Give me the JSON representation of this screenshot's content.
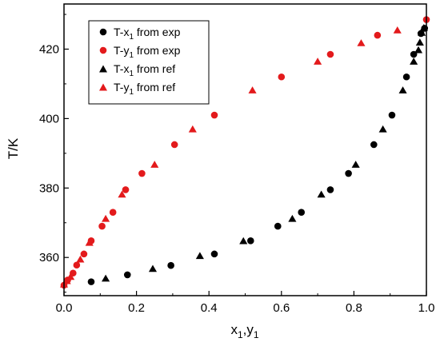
{
  "chart_data": {
    "type": "scatter",
    "xlabel_main": "x",
    "xlabel_sub1": "1",
    "xlabel_sep": ",y",
    "xlabel_sub2": "1",
    "ylabel": "T/K",
    "xlim": [
      0.0,
      1.0
    ],
    "ylim": [
      349,
      433
    ],
    "xticks": [
      "0.0",
      "0.2",
      "0.4",
      "0.6",
      "0.8",
      "1.0"
    ],
    "yticks": [
      "360",
      "380",
      "400",
      "420"
    ],
    "grid": false,
    "legend_position": "top-left",
    "series": [
      {
        "legend_main": "T-x",
        "legend_sub": "1",
        "legend_tail": " from exp",
        "color": "#000000",
        "marker": "circle",
        "points": [
          [
            0.075,
            353.0
          ],
          [
            0.175,
            355.0
          ],
          [
            0.295,
            357.7
          ],
          [
            0.415,
            361.0
          ],
          [
            0.515,
            364.8
          ],
          [
            0.59,
            369.0
          ],
          [
            0.655,
            373.0
          ],
          [
            0.735,
            379.5
          ],
          [
            0.785,
            384.2
          ],
          [
            0.855,
            392.5
          ],
          [
            0.905,
            401.0
          ],
          [
            0.945,
            412.0
          ],
          [
            0.965,
            418.5
          ],
          [
            0.985,
            424.5
          ],
          [
            0.995,
            426.0
          ]
        ]
      },
      {
        "legend_main": "T-y",
        "legend_sub": "1",
        "legend_tail": " from exp",
        "color": "#e31a1c",
        "marker": "circle",
        "points": [
          [
            0.0,
            352.0
          ],
          [
            0.01,
            353.5
          ],
          [
            0.025,
            355.5
          ],
          [
            0.035,
            357.8
          ],
          [
            0.055,
            361.0
          ],
          [
            0.075,
            364.8
          ],
          [
            0.105,
            369.0
          ],
          [
            0.135,
            373.0
          ],
          [
            0.17,
            379.5
          ],
          [
            0.215,
            384.2
          ],
          [
            0.305,
            392.5
          ],
          [
            0.415,
            401.0
          ],
          [
            0.6,
            412.0
          ],
          [
            0.735,
            418.5
          ],
          [
            0.865,
            424.0
          ],
          [
            1.0,
            428.5
          ]
        ]
      },
      {
        "legend_main": "T-x",
        "legend_sub": "1",
        "legend_tail": " from ref",
        "color": "#000000",
        "marker": "triangle",
        "points": [
          [
            0.115,
            354.0
          ],
          [
            0.245,
            356.8
          ],
          [
            0.375,
            360.5
          ],
          [
            0.495,
            364.8
          ],
          [
            0.63,
            371.2
          ],
          [
            0.71,
            378.2
          ],
          [
            0.805,
            386.8
          ],
          [
            0.88,
            397.0
          ],
          [
            0.935,
            408.2
          ],
          [
            0.965,
            416.5
          ],
          [
            0.978,
            419.8
          ],
          [
            0.982,
            422.0
          ],
          [
            0.987,
            424.8
          ],
          [
            0.993,
            426.2
          ]
        ]
      },
      {
        "legend_main": "T-y",
        "legend_sub": "1",
        "legend_tail": " from ref",
        "color": "#e31a1c",
        "marker": "triangle",
        "points": [
          [
            0.0,
            352.3
          ],
          [
            0.008,
            353.3
          ],
          [
            0.018,
            354.5
          ],
          [
            0.045,
            359.5
          ],
          [
            0.07,
            364.3
          ],
          [
            0.115,
            371.2
          ],
          [
            0.16,
            378.2
          ],
          [
            0.25,
            386.8
          ],
          [
            0.355,
            397.0
          ],
          [
            0.52,
            408.2
          ],
          [
            0.7,
            416.5
          ],
          [
            0.82,
            421.8
          ],
          [
            0.92,
            425.5
          ]
        ]
      }
    ]
  }
}
